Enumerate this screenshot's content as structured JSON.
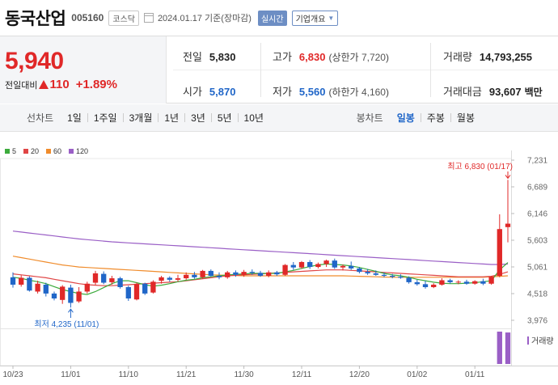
{
  "header": {
    "name": "동국산업",
    "code": "005160",
    "market": "코스닥",
    "date": "2024.01.17 기준(장마감)",
    "live_label": "실시간",
    "info_label": "기업개요"
  },
  "summary": {
    "price": "5,940",
    "change_label": "전일대비",
    "change_amount": "110",
    "change_pct": "+1.89%",
    "prev_close_label": "전일",
    "prev_close": "5,830",
    "high_label": "고가",
    "high": "6,830",
    "upper_limit_label": "상한가",
    "upper_limit": "7,720",
    "volume_label": "거래량",
    "volume": "14,793,255",
    "open_label": "시가",
    "open": "5,870",
    "low_label": "저가",
    "low": "5,560",
    "lower_limit_label": "하한가",
    "lower_limit": "4,160",
    "amount_label": "거래대금",
    "amount": "93,607",
    "amount_unit": "백만"
  },
  "period_bar": {
    "line_title": "선차트",
    "line_periods": [
      "1일",
      "1주일",
      "3개월",
      "1년",
      "3년",
      "5년",
      "10년"
    ],
    "candle_title": "봉차트",
    "candle_periods": [
      "일봉",
      "주봉",
      "월봉"
    ],
    "active_candle": "일봉"
  },
  "legend": [
    {
      "label": "5",
      "color": "#3cab3c"
    },
    {
      "label": "20",
      "color": "#e04545"
    },
    {
      "label": "60",
      "color": "#f08c2c"
    },
    {
      "label": "120",
      "color": "#9a5fc6"
    }
  ],
  "chart_data": {
    "type": "candlestick",
    "y_ticks": [
      "7,231",
      "6,689",
      "6,146",
      "5,603",
      "5,061",
      "4,518",
      "3,976"
    ],
    "ylim": [
      3976,
      7231
    ],
    "x_ticks": [
      {
        "label": "10/23",
        "index": 0
      },
      {
        "label": "11/01",
        "index": 7
      },
      {
        "label": "11/10",
        "index": 14
      },
      {
        "label": "11/21",
        "index": 21
      },
      {
        "label": "11/30",
        "index": 28
      },
      {
        "label": "12/11",
        "index": 35
      },
      {
        "label": "12/20",
        "index": 42
      },
      {
        "label": "01/02",
        "index": 49
      },
      {
        "label": "01/11",
        "index": 56
      }
    ],
    "candles": [
      {
        "o": 4850,
        "h": 4950,
        "l": 4640,
        "c": 4700
      },
      {
        "o": 4700,
        "h": 4890,
        "l": 4660,
        "c": 4840
      },
      {
        "o": 4840,
        "h": 4870,
        "l": 4560,
        "c": 4580
      },
      {
        "o": 4560,
        "h": 4780,
        "l": 4520,
        "c": 4720
      },
      {
        "o": 4700,
        "h": 4740,
        "l": 4460,
        "c": 4520
      },
      {
        "o": 4520,
        "h": 4560,
        "l": 4380,
        "c": 4420
      },
      {
        "o": 4390,
        "h": 4690,
        "l": 4310,
        "c": 4660
      },
      {
        "o": 4640,
        "h": 4700,
        "l": 4235,
        "c": 4330
      },
      {
        "o": 4360,
        "h": 4650,
        "l": 4330,
        "c": 4560
      },
      {
        "o": 4560,
        "h": 4760,
        "l": 4520,
        "c": 4720
      },
      {
        "o": 4740,
        "h": 4980,
        "l": 4700,
        "c": 4930
      },
      {
        "o": 4920,
        "h": 4970,
        "l": 4710,
        "c": 4740
      },
      {
        "o": 4750,
        "h": 4880,
        "l": 4700,
        "c": 4830
      },
      {
        "o": 4830,
        "h": 4860,
        "l": 4620,
        "c": 4650
      },
      {
        "o": 4650,
        "h": 4680,
        "l": 4370,
        "c": 4420
      },
      {
        "o": 4400,
        "h": 4740,
        "l": 4380,
        "c": 4710
      },
      {
        "o": 4720,
        "h": 4740,
        "l": 4490,
        "c": 4520
      },
      {
        "o": 4540,
        "h": 4790,
        "l": 4520,
        "c": 4760
      },
      {
        "o": 4780,
        "h": 4880,
        "l": 4720,
        "c": 4850
      },
      {
        "o": 4840,
        "h": 4870,
        "l": 4760,
        "c": 4800
      },
      {
        "o": 4800,
        "h": 4900,
        "l": 4760,
        "c": 4830
      },
      {
        "o": 4830,
        "h": 4950,
        "l": 4800,
        "c": 4900
      },
      {
        "o": 4900,
        "h": 4960,
        "l": 4820,
        "c": 4850
      },
      {
        "o": 4850,
        "h": 5000,
        "l": 4820,
        "c": 4980
      },
      {
        "o": 4980,
        "h": 5010,
        "l": 4860,
        "c": 4880
      },
      {
        "o": 4880,
        "h": 4950,
        "l": 4810,
        "c": 4850
      },
      {
        "o": 4850,
        "h": 4980,
        "l": 4820,
        "c": 4950
      },
      {
        "o": 4950,
        "h": 4990,
        "l": 4860,
        "c": 4900
      },
      {
        "o": 4900,
        "h": 5000,
        "l": 4860,
        "c": 4960
      },
      {
        "o": 4960,
        "h": 5010,
        "l": 4900,
        "c": 4940
      },
      {
        "o": 4940,
        "h": 4980,
        "l": 4860,
        "c": 4880
      },
      {
        "o": 4880,
        "h": 4990,
        "l": 4850,
        "c": 4950
      },
      {
        "o": 4950,
        "h": 4980,
        "l": 4880,
        "c": 4910
      },
      {
        "o": 4900,
        "h": 5120,
        "l": 4880,
        "c": 5100
      },
      {
        "o": 5100,
        "h": 5160,
        "l": 5000,
        "c": 5050
      },
      {
        "o": 5050,
        "h": 5180,
        "l": 5020,
        "c": 5160
      },
      {
        "o": 5160,
        "h": 5200,
        "l": 5020,
        "c": 5060
      },
      {
        "o": 5060,
        "h": 5150,
        "l": 5030,
        "c": 5120
      },
      {
        "o": 5120,
        "h": 5210,
        "l": 5060,
        "c": 5190
      },
      {
        "o": 5190,
        "h": 5230,
        "l": 5020,
        "c": 5050
      },
      {
        "o": 5050,
        "h": 5110,
        "l": 4990,
        "c": 5080
      },
      {
        "o": 5080,
        "h": 5170,
        "l": 5000,
        "c": 5030
      },
      {
        "o": 5030,
        "h": 5060,
        "l": 4930,
        "c": 4960
      },
      {
        "o": 4960,
        "h": 5020,
        "l": 4900,
        "c": 4930
      },
      {
        "o": 4930,
        "h": 4990,
        "l": 4880,
        "c": 4900
      },
      {
        "o": 4900,
        "h": 4950,
        "l": 4850,
        "c": 4880
      },
      {
        "o": 4880,
        "h": 4920,
        "l": 4830,
        "c": 4860
      },
      {
        "o": 4860,
        "h": 4910,
        "l": 4820,
        "c": 4840
      },
      {
        "o": 4840,
        "h": 4870,
        "l": 4720,
        "c": 4750
      },
      {
        "o": 4750,
        "h": 4800,
        "l": 4680,
        "c": 4710
      },
      {
        "o": 4710,
        "h": 4780,
        "l": 4620,
        "c": 4650
      },
      {
        "o": 4650,
        "h": 4730,
        "l": 4630,
        "c": 4700
      },
      {
        "o": 4700,
        "h": 4830,
        "l": 4680,
        "c": 4790
      },
      {
        "o": 4790,
        "h": 4820,
        "l": 4720,
        "c": 4750
      },
      {
        "o": 4750,
        "h": 4790,
        "l": 4710,
        "c": 4760
      },
      {
        "o": 4760,
        "h": 4800,
        "l": 4700,
        "c": 4720
      },
      {
        "o": 4720,
        "h": 4790,
        "l": 4700,
        "c": 4770
      },
      {
        "o": 4770,
        "h": 4820,
        "l": 4690,
        "c": 4720
      },
      {
        "o": 4720,
        "h": 4880,
        "l": 4700,
        "c": 4860
      },
      {
        "o": 4880,
        "h": 6130,
        "l": 4850,
        "c": 5830
      },
      {
        "o": 5870,
        "h": 6830,
        "l": 5560,
        "c": 5940
      }
    ],
    "ma5": [
      4850,
      4830,
      4790,
      4760,
      4720,
      4660,
      4600,
      4560,
      4520,
      4500,
      4560,
      4640,
      4720,
      4780,
      4780,
      4740,
      4700,
      4670,
      4690,
      4720,
      4760,
      4790,
      4810,
      4840,
      4860,
      4880,
      4900,
      4910,
      4920,
      4930,
      4930,
      4930,
      4930,
      4960,
      4990,
      5030,
      5070,
      5100,
      5120,
      5110,
      5100,
      5080,
      5050,
      5010,
      4970,
      4930,
      4900,
      4880,
      4850,
      4810,
      4780,
      4750,
      4730,
      4720,
      4720,
      4730,
      4740,
      4760,
      4780,
      5000,
      5150
    ],
    "ma20": [
      4920,
      4900,
      4880,
      4860,
      4840,
      4810,
      4780,
      4750,
      4720,
      4700,
      4690,
      4680,
      4680,
      4690,
      4700,
      4710,
      4720,
      4730,
      4740,
      4750,
      4760,
      4780,
      4800,
      4820,
      4840,
      4860,
      4880,
      4890,
      4900,
      4910,
      4920,
      4930,
      4940,
      4950,
      4960,
      4970,
      4980,
      4990,
      5000,
      5000,
      5000,
      4990,
      4980,
      4970,
      4960,
      4950,
      4940,
      4930,
      4920,
      4910,
      4900,
      4890,
      4880,
      4870,
      4860,
      4860,
      4860,
      4860,
      4870,
      4910,
      4960
    ],
    "ma60": [
      5280,
      5250,
      5220,
      5190,
      5160,
      5130,
      5100,
      5080,
      5060,
      5050,
      5040,
      5030,
      5020,
      5010,
      5000,
      4990,
      4980,
      4970,
      4960,
      4950,
      4940,
      4930,
      4920,
      4910,
      4900,
      4895,
      4890,
      4885,
      4880,
      4880,
      4880,
      4880,
      4880,
      4880,
      4880,
      4880,
      4880,
      4880,
      4880,
      4880,
      4880,
      4875,
      4870,
      4865,
      4860,
      4855,
      4850,
      4850,
      4850,
      4850,
      4850,
      4850,
      4850,
      4850,
      4850,
      4850,
      4850,
      4850,
      4860,
      4870,
      4880
    ],
    "ma120": [
      5790,
      5770,
      5750,
      5730,
      5710,
      5690,
      5670,
      5650,
      5630,
      5615,
      5600,
      5585,
      5570,
      5560,
      5550,
      5540,
      5530,
      5520,
      5510,
      5500,
      5490,
      5480,
      5470,
      5460,
      5450,
      5440,
      5430,
      5420,
      5410,
      5400,
      5390,
      5380,
      5370,
      5360,
      5350,
      5340,
      5330,
      5320,
      5310,
      5300,
      5290,
      5280,
      5270,
      5260,
      5250,
      5240,
      5230,
      5220,
      5210,
      5200,
      5190,
      5180,
      5170,
      5160,
      5150,
      5140,
      5130,
      5120,
      5110,
      5110,
      5120
    ],
    "volume_label": "거래량",
    "volumes": [
      0,
      0,
      0,
      0,
      0,
      0,
      0,
      0,
      0,
      0,
      0,
      0,
      0,
      0,
      0,
      0,
      0,
      0,
      0,
      0,
      0,
      0,
      0,
      0,
      0,
      0,
      0,
      0,
      0,
      0,
      0,
      0,
      0,
      0,
      0,
      0,
      0,
      0,
      0,
      0,
      0,
      0,
      0,
      0,
      0,
      0,
      0,
      0,
      0,
      0,
      0,
      0,
      0,
      0,
      0,
      0,
      0,
      0,
      0,
      15200000,
      14793255
    ],
    "annotation_high": {
      "text": "최고 6,830 (01/17)",
      "index": 60
    },
    "annotation_low": {
      "text": "최저 4,235 (11/01)",
      "index": 7
    }
  }
}
